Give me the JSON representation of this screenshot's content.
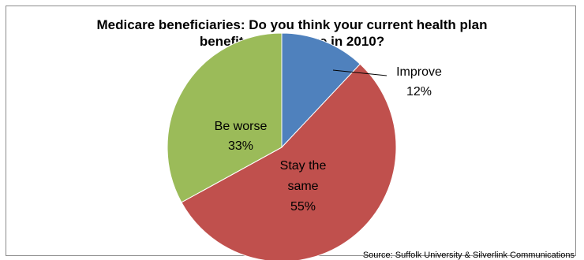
{
  "chart_data": {
    "type": "pie",
    "title_lines": [
      "Medicare beneficiaries:  Do you think your current health plan",
      "benefits will change in 2010?"
    ],
    "slices": [
      {
        "label": "Improve",
        "value": 12,
        "value_label": "12%",
        "color": "#4f81bd"
      },
      {
        "label": "Stay the same",
        "label_lines": [
          "Stay the",
          "same"
        ],
        "value": 55,
        "value_label": "55%",
        "color": "#c0504d"
      },
      {
        "label": "Be worse",
        "value": 33,
        "value_label": "33%",
        "color": "#9bbb59"
      }
    ],
    "start": "12 o'clock",
    "direction": "clockwise",
    "legend": "none"
  },
  "source": "Source:  Suffolk University & Silverlink Communications"
}
